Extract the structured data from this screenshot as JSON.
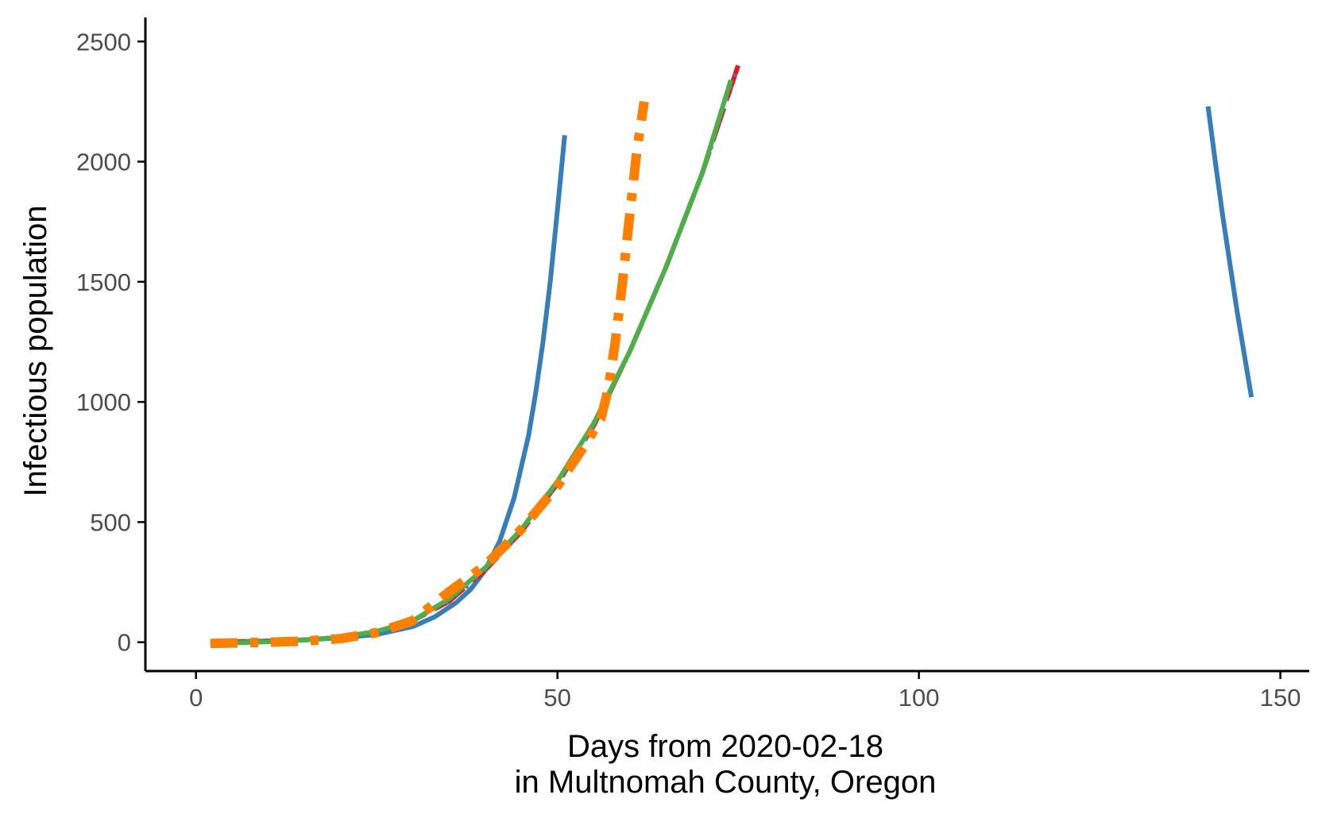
{
  "chart_data": {
    "type": "line",
    "title": "",
    "xlabel_line1": "Days from 2020-02-18",
    "xlabel_line2": "in Multnomah County, Oregon",
    "ylabel": "Infectious population",
    "xlim": [
      -7,
      154
    ],
    "ylim": [
      -120,
      2600
    ],
    "xticks": [
      0,
      50,
      100,
      150
    ],
    "yticks": [
      0,
      500,
      1000,
      1500,
      2000,
      2500
    ],
    "grid": false,
    "legend": "none",
    "series": [
      {
        "color": "#377eb8",
        "dash": "solid",
        "width": 6,
        "x": [
          2,
          5,
          10,
          15,
          20,
          25,
          30,
          33,
          36,
          38,
          40,
          42,
          44,
          46,
          47,
          48,
          49,
          50,
          51
        ],
        "y": [
          0,
          2,
          5,
          10,
          18,
          32,
          65,
          105,
          165,
          220,
          300,
          420,
          600,
          860,
          1040,
          1250,
          1500,
          1800,
          2110
        ],
        "segments": [
          {
            "x": [
              140,
              141,
              142,
              143,
              144,
              145,
              146
            ],
            "y": [
              2230,
              2000,
              1780,
              1580,
              1380,
              1200,
              1020
            ]
          }
        ]
      },
      {
        "color": "#e41a1c",
        "dash": "longdash",
        "width": 6,
        "x": [
          2,
          5,
          10,
          15,
          20,
          25,
          30,
          35,
          40,
          45,
          50,
          55,
          60,
          65,
          70,
          75
        ],
        "y": [
          0,
          2,
          5,
          10,
          20,
          45,
          90,
          170,
          300,
          460,
          660,
          900,
          1210,
          1560,
          1950,
          2400
        ]
      },
      {
        "color": "#984ea3",
        "dash": "dotted",
        "width": 6,
        "x": [
          2,
          5,
          10,
          15,
          20,
          25,
          30,
          35,
          40,
          45,
          50,
          55,
          60,
          65,
          70,
          75
        ],
        "y": [
          0,
          2,
          5,
          10,
          20,
          45,
          90,
          170,
          300,
          460,
          660,
          900,
          1210,
          1560,
          1950,
          2400
        ]
      },
      {
        "color": "#4daf4a",
        "dash": "solid",
        "width": 6,
        "x": [
          2,
          5,
          10,
          15,
          20,
          25,
          30,
          35,
          40,
          45,
          50,
          55,
          60,
          65,
          70,
          74
        ],
        "y": [
          -5,
          -3,
          2,
          9,
          20,
          45,
          90,
          180,
          310,
          470,
          670,
          910,
          1210,
          1560,
          1950,
          2340
        ]
      },
      {
        "color": "#ff7f00",
        "dash": "dashdot",
        "width": 12,
        "x": [
          2,
          5,
          10,
          15,
          20,
          25,
          30,
          35,
          40,
          45,
          50,
          52,
          54,
          56,
          57,
          58,
          59,
          60,
          61,
          62
        ],
        "y": [
          -5,
          -3,
          0,
          5,
          15,
          40,
          90,
          210,
          320,
          470,
          650,
          740,
          830,
          930,
          1050,
          1250,
          1500,
          1780,
          2050,
          2250
        ]
      }
    ]
  }
}
